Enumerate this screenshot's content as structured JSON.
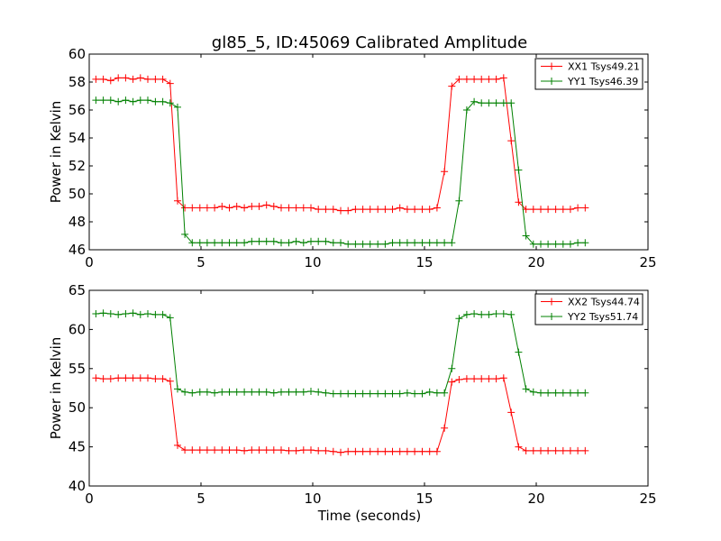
{
  "title": "gl85_5, ID:45069 Calibrated Amplitude",
  "colors": {
    "red": "#ff0000",
    "green": "#008000",
    "axes": "#000000",
    "background": "#ffffff"
  },
  "chart_data": [
    {
      "type": "line",
      "title": "gl85_5, ID:45069 Calibrated Amplitude",
      "xlabel": "",
      "ylabel": "Power in Kelvin",
      "xlim": [
        0,
        25
      ],
      "ylim": [
        46,
        60
      ],
      "xticks": [
        0,
        5,
        10,
        15,
        20,
        25
      ],
      "yticks": [
        46,
        48,
        50,
        52,
        54,
        56,
        58,
        60
      ],
      "grid": false,
      "legend_position": "top-right",
      "marker": "+",
      "x": [
        0.3,
        0.63,
        0.96,
        1.3,
        1.63,
        1.96,
        2.29,
        2.62,
        2.96,
        3.29,
        3.62,
        3.95,
        4.28,
        4.61,
        4.95,
        5.28,
        5.61,
        5.94,
        6.27,
        6.6,
        6.94,
        7.27,
        7.6,
        7.93,
        8.26,
        8.59,
        8.93,
        9.26,
        9.59,
        9.92,
        10.25,
        10.58,
        10.92,
        11.25,
        11.58,
        11.91,
        12.24,
        12.57,
        12.91,
        13.24,
        13.57,
        13.9,
        14.23,
        14.56,
        14.9,
        15.23,
        15.56,
        15.89,
        16.22,
        16.55,
        16.89,
        17.22,
        17.55,
        17.88,
        18.21,
        18.54,
        18.88,
        19.21,
        19.54,
        19.87,
        20.2,
        20.53,
        20.87,
        21.2,
        21.53,
        21.86,
        22.19
      ],
      "series": [
        {
          "name": "XX1 Tsys49.21",
          "color": "#ff0000",
          "values": [
            58.2,
            58.2,
            58.1,
            58.3,
            58.3,
            58.2,
            58.3,
            58.2,
            58.2,
            58.2,
            57.9,
            49.5,
            49.0,
            49.0,
            49.0,
            49.0,
            49.0,
            49.1,
            49.0,
            49.1,
            49.0,
            49.1,
            49.1,
            49.2,
            49.1,
            49.0,
            49.0,
            49.0,
            49.0,
            49.0,
            48.9,
            48.9,
            48.9,
            48.8,
            48.8,
            48.9,
            48.9,
            48.9,
            48.9,
            48.9,
            48.9,
            49.0,
            48.9,
            48.9,
            48.9,
            48.9,
            49.0,
            51.6,
            57.7,
            58.2,
            58.2,
            58.2,
            58.2,
            58.2,
            58.2,
            58.3,
            53.8,
            49.4,
            48.9,
            48.9,
            48.9,
            48.9,
            48.9,
            48.9,
            48.9,
            49.0,
            49.0
          ]
        },
        {
          "name": "YY1 Tsys46.39",
          "color": "#008000",
          "values": [
            56.7,
            56.7,
            56.7,
            56.6,
            56.7,
            56.6,
            56.7,
            56.7,
            56.6,
            56.6,
            56.5,
            56.2,
            47.1,
            46.5,
            46.5,
            46.5,
            46.5,
            46.5,
            46.5,
            46.5,
            46.5,
            46.6,
            46.6,
            46.6,
            46.6,
            46.5,
            46.5,
            46.6,
            46.5,
            46.6,
            46.6,
            46.6,
            46.5,
            46.5,
            46.4,
            46.4,
            46.4,
            46.4,
            46.4,
            46.4,
            46.5,
            46.5,
            46.5,
            46.5,
            46.5,
            46.5,
            46.5,
            46.5,
            46.5,
            49.5,
            56.0,
            56.6,
            56.5,
            56.5,
            56.5,
            56.5,
            56.5,
            51.7,
            47.0,
            46.4,
            46.4,
            46.4,
            46.4,
            46.4,
            46.4,
            46.5,
            46.5
          ]
        }
      ]
    },
    {
      "type": "line",
      "title": "",
      "xlabel": "Time (seconds)",
      "ylabel": "Power in Kelvin",
      "xlim": [
        0,
        25
      ],
      "ylim": [
        40,
        65
      ],
      "xticks": [
        0,
        5,
        10,
        15,
        20,
        25
      ],
      "yticks": [
        40,
        45,
        50,
        55,
        60,
        65
      ],
      "grid": false,
      "legend_position": "top-right",
      "marker": "+",
      "x": [
        0.3,
        0.63,
        0.96,
        1.3,
        1.63,
        1.96,
        2.29,
        2.62,
        2.96,
        3.29,
        3.62,
        3.95,
        4.28,
        4.61,
        4.95,
        5.28,
        5.61,
        5.94,
        6.27,
        6.6,
        6.94,
        7.27,
        7.6,
        7.93,
        8.26,
        8.59,
        8.93,
        9.26,
        9.59,
        9.92,
        10.25,
        10.58,
        10.92,
        11.25,
        11.58,
        11.91,
        12.24,
        12.57,
        12.91,
        13.24,
        13.57,
        13.9,
        14.23,
        14.56,
        14.9,
        15.23,
        15.56,
        15.89,
        16.22,
        16.55,
        16.89,
        17.22,
        17.55,
        17.88,
        18.21,
        18.54,
        18.88,
        19.21,
        19.54,
        19.87,
        20.2,
        20.53,
        20.87,
        21.2,
        21.53,
        21.86,
        22.19
      ],
      "series": [
        {
          "name": "XX2 Tsys44.74",
          "color": "#ff0000",
          "values": [
            53.8,
            53.7,
            53.7,
            53.8,
            53.8,
            53.8,
            53.8,
            53.8,
            53.7,
            53.7,
            53.4,
            45.2,
            44.6,
            44.6,
            44.6,
            44.6,
            44.6,
            44.6,
            44.6,
            44.6,
            44.5,
            44.6,
            44.6,
            44.6,
            44.6,
            44.6,
            44.5,
            44.5,
            44.6,
            44.6,
            44.5,
            44.5,
            44.4,
            44.3,
            44.4,
            44.4,
            44.4,
            44.4,
            44.4,
            44.4,
            44.4,
            44.4,
            44.4,
            44.4,
            44.4,
            44.4,
            44.4,
            47.4,
            53.3,
            53.6,
            53.7,
            53.7,
            53.7,
            53.7,
            53.7,
            53.8,
            49.4,
            45.0,
            44.5,
            44.5,
            44.5,
            44.5,
            44.5,
            44.5,
            44.5,
            44.5,
            44.5
          ]
        },
        {
          "name": "YY2 Tsys51.74",
          "color": "#008000",
          "values": [
            62.0,
            62.1,
            62.0,
            61.9,
            62.0,
            62.1,
            61.9,
            62.0,
            61.9,
            61.9,
            61.5,
            52.4,
            52.0,
            51.9,
            52.0,
            52.0,
            51.9,
            52.0,
            52.0,
            52.0,
            52.0,
            52.0,
            52.0,
            52.0,
            51.9,
            52.0,
            52.0,
            52.0,
            52.0,
            52.1,
            52.0,
            51.9,
            51.8,
            51.8,
            51.8,
            51.8,
            51.8,
            51.8,
            51.8,
            51.8,
            51.8,
            51.8,
            51.9,
            51.8,
            51.8,
            52.0,
            51.9,
            51.9,
            55.0,
            61.4,
            61.9,
            62.0,
            61.9,
            61.9,
            62.0,
            62.0,
            61.9,
            57.1,
            52.4,
            52.0,
            51.9,
            51.9,
            51.9,
            51.9,
            51.9,
            51.9,
            51.9
          ]
        }
      ]
    }
  ]
}
